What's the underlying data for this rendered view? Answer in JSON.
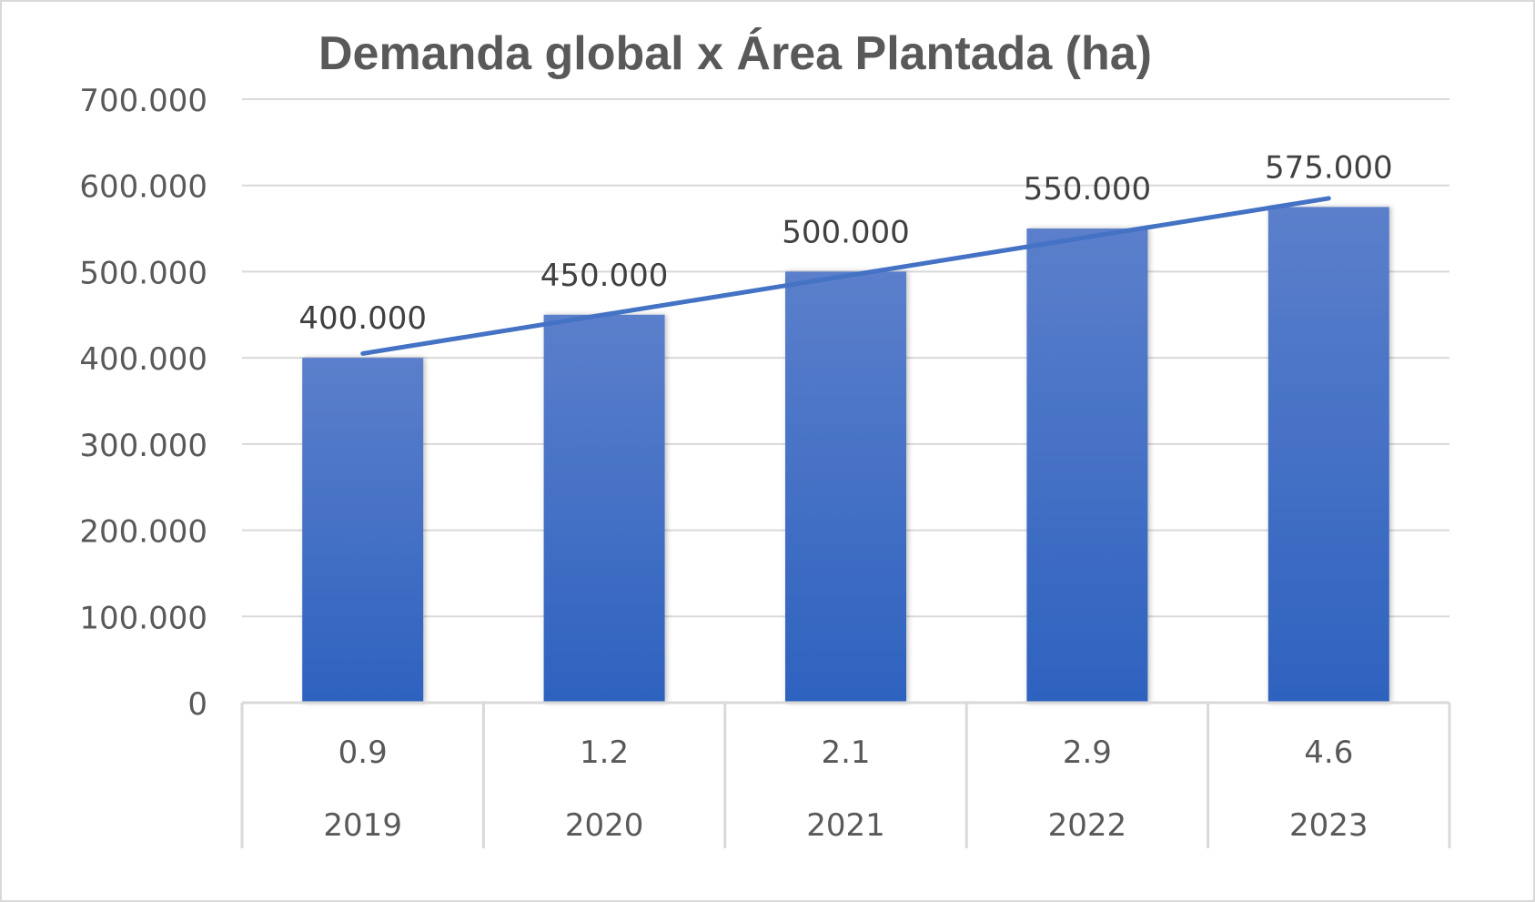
{
  "chart_data": {
    "type": "bar",
    "title": "Demanda global x Área Plantada (ha)",
    "categories": [
      "2019",
      "2020",
      "2021",
      "2022",
      "2023"
    ],
    "sub_categories": [
      "0.9",
      "1.2",
      "2.1",
      "2.9",
      "4.6"
    ],
    "values": [
      400000,
      450000,
      500000,
      550000,
      575000
    ],
    "data_labels": [
      "400.000",
      "450.000",
      "500.000",
      "550.000",
      "575.000"
    ],
    "ylim": [
      0,
      700000
    ],
    "y_ticks": [
      0,
      100000,
      200000,
      300000,
      400000,
      500000,
      600000,
      700000
    ],
    "y_tick_labels": [
      "0",
      "100.000",
      "200.000",
      "300.000",
      "400.000",
      "500.000",
      "600.000",
      "700.000"
    ],
    "trendline": {
      "type": "linear",
      "start": 405000,
      "end": 585000
    },
    "grid": true,
    "legend": "none",
    "colors": {
      "bar_top": "#5b7fcb",
      "bar_bottom": "#2e62bf",
      "trendline": "#4472c4",
      "grid": "#d9d9d9",
      "border": "#d9d9d9"
    }
  }
}
